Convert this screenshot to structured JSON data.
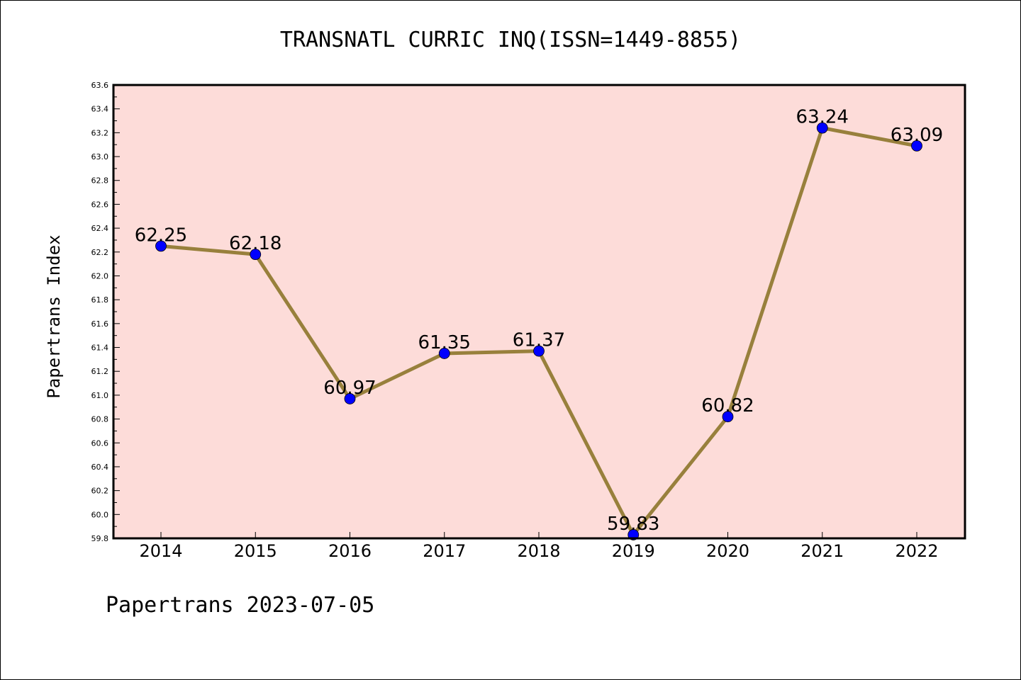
{
  "chart_data": {
    "type": "line",
    "title": "TRANSNATL CURRIC INQ(ISSN=1449-8855)",
    "ylabel": "Papertrans Index",
    "xlabel": "",
    "footer": "Papertrans 2023-07-05",
    "categories": [
      "2014",
      "2015",
      "2016",
      "2017",
      "2018",
      "2019",
      "2020",
      "2021",
      "2022"
    ],
    "series": [
      {
        "values": [
          62.25,
          62.18,
          60.97,
          61.35,
          61.37,
          59.83,
          60.82,
          63.24,
          63.09
        ],
        "labels": [
          "62.25",
          "62.18",
          "60.97",
          "61.35",
          "61.37",
          "59.83",
          "60.82",
          "63.24",
          "63.09"
        ]
      }
    ],
    "ylim": [
      59.8,
      63.6
    ],
    "yticks": [
      "59.8",
      "60.0",
      "60.2",
      "60.4",
      "60.6",
      "60.8",
      "61.0",
      "61.2",
      "61.4",
      "61.6",
      "61.8",
      "62.0",
      "62.2",
      "62.4",
      "62.6",
      "62.8",
      "63.0",
      "63.2",
      "63.4",
      "63.6"
    ],
    "grid": false,
    "colors": {
      "plot_background": "#fddcd9",
      "line": "#98803c",
      "marker": "#0000ff"
    }
  }
}
